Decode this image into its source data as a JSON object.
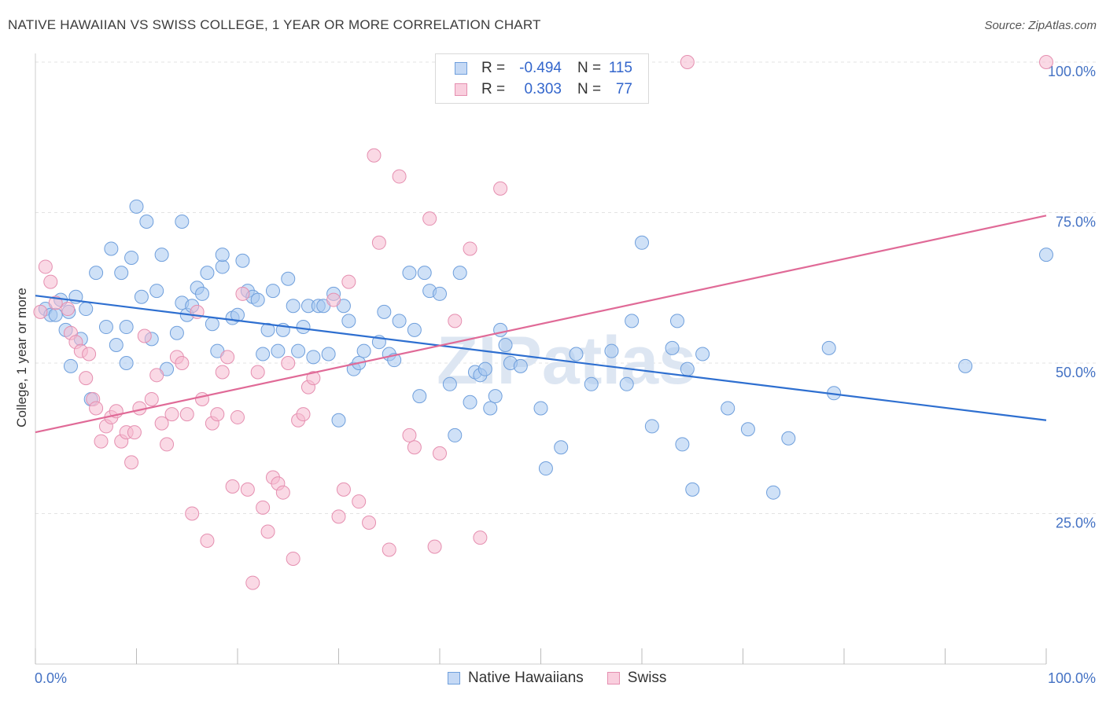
{
  "title": "NATIVE HAWAIIAN VS SWISS COLLEGE, 1 YEAR OR MORE CORRELATION CHART",
  "source": "Source: ZipAtlas.com",
  "colors": {
    "blue_fill": "#a8c8f0",
    "blue_stroke": "#6f9fdc",
    "blue_line": "#2e6fd0",
    "pink_fill": "#f6b9cf",
    "pink_stroke": "#e58fb0",
    "pink_line": "#e06a97",
    "tick_text": "#4472c4"
  },
  "legend": {
    "rows": [
      {
        "r_label": "R =",
        "r_value": "-0.494",
        "n_label": "N =",
        "n_value": "115"
      },
      {
        "r_label": "R =",
        "r_value": "0.303",
        "n_label": "N =",
        "n_value": "77"
      }
    ]
  },
  "bottom_legend": [
    "Native Hawaiians",
    "Swiss"
  ],
  "chart_data": {
    "type": "scatter",
    "title": "NATIVE HAWAIIAN VS SWISS COLLEGE, 1 YEAR OR MORE CORRELATION CHART",
    "xlabel": "",
    "ylabel": "College, 1 year or more",
    "xlim": [
      0,
      100
    ],
    "ylim": [
      0,
      100
    ],
    "x_tick_labels": [
      "0.0%",
      "100.0%"
    ],
    "y_tick_labels": [
      "25.0%",
      "50.0%",
      "75.0%",
      "100.0%"
    ],
    "y_ticks": [
      25,
      50,
      75,
      100
    ],
    "grid": true,
    "legend_position": "top-center",
    "watermark": "ZIPatlas",
    "series": [
      {
        "name": "Native Hawaiians",
        "R": -0.494,
        "N": 115,
        "trend": {
          "x": [
            0,
            100
          ],
          "y": [
            61.2,
            40.5
          ]
        },
        "points": [
          [
            1,
            59
          ],
          [
            1.5,
            58
          ],
          [
            2,
            58
          ],
          [
            2.5,
            60.5
          ],
          [
            3,
            55.5
          ],
          [
            3.3,
            58.5
          ],
          [
            3.5,
            49.5
          ],
          [
            4,
            61
          ],
          [
            4.5,
            54
          ],
          [
            5,
            59
          ],
          [
            5.5,
            44
          ],
          [
            6,
            65
          ],
          [
            7,
            56
          ],
          [
            7.5,
            69
          ],
          [
            8,
            53
          ],
          [
            8.5,
            65
          ],
          [
            9,
            50
          ],
          [
            9,
            56
          ],
          [
            9.5,
            67.5
          ],
          [
            10,
            76
          ],
          [
            10.5,
            61
          ],
          [
            11,
            73.5
          ],
          [
            11.5,
            54
          ],
          [
            12,
            62
          ],
          [
            12.5,
            68
          ],
          [
            13,
            49
          ],
          [
            14,
            55
          ],
          [
            14.5,
            73.5
          ],
          [
            14.5,
            60
          ],
          [
            15,
            58
          ],
          [
            15.5,
            59.5
          ],
          [
            16,
            62.5
          ],
          [
            16.5,
            61.5
          ],
          [
            17,
            65
          ],
          [
            17.5,
            56.5
          ],
          [
            18,
            52
          ],
          [
            18.5,
            66
          ],
          [
            18.5,
            68
          ],
          [
            19.5,
            57.5
          ],
          [
            20,
            58
          ],
          [
            20.5,
            67
          ],
          [
            21,
            62
          ],
          [
            21.5,
            61
          ],
          [
            22,
            60.5
          ],
          [
            22.5,
            51.5
          ],
          [
            23,
            55.5
          ],
          [
            23.5,
            62
          ],
          [
            24,
            52
          ],
          [
            24.5,
            55.5
          ],
          [
            25,
            64
          ],
          [
            25.5,
            59.5
          ],
          [
            26,
            52
          ],
          [
            26.5,
            56
          ],
          [
            27,
            59.5
          ],
          [
            27.5,
            51
          ],
          [
            28,
            59.5
          ],
          [
            28.5,
            59.5
          ],
          [
            29,
            51.5
          ],
          [
            29.5,
            61.5
          ],
          [
            30,
            40.5
          ],
          [
            30.5,
            59.5
          ],
          [
            31,
            57
          ],
          [
            31.5,
            49
          ],
          [
            32,
            50
          ],
          [
            32.5,
            52
          ],
          [
            34,
            53.5
          ],
          [
            34.5,
            58.5
          ],
          [
            35,
            51.5
          ],
          [
            35.5,
            50.5
          ],
          [
            36,
            57
          ],
          [
            37,
            65
          ],
          [
            37.5,
            55.5
          ],
          [
            38,
            44.5
          ],
          [
            38.5,
            65
          ],
          [
            39,
            62
          ],
          [
            40,
            61.5
          ],
          [
            41,
            46.5
          ],
          [
            41.5,
            38
          ],
          [
            42,
            65
          ],
          [
            43,
            43.5
          ],
          [
            43.5,
            48.5
          ],
          [
            44,
            48
          ],
          [
            44.5,
            49
          ],
          [
            45,
            42.5
          ],
          [
            45.5,
            44.5
          ],
          [
            46,
            55.5
          ],
          [
            46.5,
            53
          ],
          [
            47,
            50
          ],
          [
            48,
            49.5
          ],
          [
            50,
            42.5
          ],
          [
            50.5,
            32.5
          ],
          [
            52,
            36
          ],
          [
            53.5,
            51.5
          ],
          [
            55,
            46.5
          ],
          [
            57,
            52
          ],
          [
            58.5,
            46.5
          ],
          [
            59,
            57
          ],
          [
            60,
            70
          ],
          [
            61,
            39.5
          ],
          [
            63,
            52.5
          ],
          [
            63.5,
            57
          ],
          [
            64,
            36.5
          ],
          [
            64.5,
            49
          ],
          [
            65,
            29
          ],
          [
            66,
            51.5
          ],
          [
            68.5,
            42.5
          ],
          [
            70.5,
            39
          ],
          [
            73,
            28.5
          ],
          [
            74.5,
            37.5
          ],
          [
            78.5,
            52.5
          ],
          [
            79,
            45
          ],
          [
            92,
            49.5
          ],
          [
            100,
            68
          ]
        ]
      },
      {
        "name": "Swiss",
        "R": 0.303,
        "N": 77,
        "trend": {
          "x": [
            0,
            100
          ],
          "y": [
            38.5,
            74.5
          ]
        },
        "points": [
          [
            0.5,
            58.5
          ],
          [
            1,
            66
          ],
          [
            1.5,
            63.5
          ],
          [
            2,
            60
          ],
          [
            3.2,
            59
          ],
          [
            3.5,
            55
          ],
          [
            4,
            53.5
          ],
          [
            4.5,
            52
          ],
          [
            5,
            47.5
          ],
          [
            5.3,
            51.5
          ],
          [
            5.7,
            44
          ],
          [
            6,
            42.5
          ],
          [
            6.5,
            37
          ],
          [
            7,
            39.5
          ],
          [
            7.5,
            41
          ],
          [
            8,
            42
          ],
          [
            8.5,
            37
          ],
          [
            9,
            38.5
          ],
          [
            9.5,
            33.5
          ],
          [
            9.8,
            38.5
          ],
          [
            10.3,
            42.5
          ],
          [
            10.8,
            54.5
          ],
          [
            11.5,
            44
          ],
          [
            12,
            48
          ],
          [
            12.5,
            40
          ],
          [
            13,
            36.5
          ],
          [
            13.5,
            41.5
          ],
          [
            14,
            51
          ],
          [
            14.5,
            50
          ],
          [
            15,
            41.5
          ],
          [
            15.5,
            25
          ],
          [
            16,
            58.5
          ],
          [
            16.5,
            44
          ],
          [
            17,
            20.5
          ],
          [
            17.5,
            40
          ],
          [
            18,
            41.5
          ],
          [
            18.5,
            48.5
          ],
          [
            19,
            51
          ],
          [
            19.5,
            29.5
          ],
          [
            20,
            41
          ],
          [
            20.5,
            61.5
          ],
          [
            21,
            29
          ],
          [
            21.5,
            13.5
          ],
          [
            22,
            48.5
          ],
          [
            22.5,
            26
          ],
          [
            23,
            22
          ],
          [
            23.5,
            31
          ],
          [
            24,
            30
          ],
          [
            24.5,
            28.5
          ],
          [
            25,
            50
          ],
          [
            25.5,
            17.5
          ],
          [
            26,
            40.5
          ],
          [
            26.5,
            41.5
          ],
          [
            27,
            46
          ],
          [
            27.5,
            47.5
          ],
          [
            29.5,
            60.5
          ],
          [
            30,
            24.5
          ],
          [
            30.5,
            29
          ],
          [
            31,
            63.5
          ],
          [
            32,
            27
          ],
          [
            33,
            23.5
          ],
          [
            33.5,
            84.5
          ],
          [
            34,
            70
          ],
          [
            35,
            19
          ],
          [
            36,
            81
          ],
          [
            37,
            38
          ],
          [
            37.5,
            36
          ],
          [
            39,
            74
          ],
          [
            39.5,
            19.5
          ],
          [
            40,
            35
          ],
          [
            41.5,
            57
          ],
          [
            43,
            69
          ],
          [
            44,
            21
          ],
          [
            46,
            79
          ],
          [
            64.5,
            100
          ],
          [
            100,
            100
          ]
        ]
      }
    ]
  }
}
